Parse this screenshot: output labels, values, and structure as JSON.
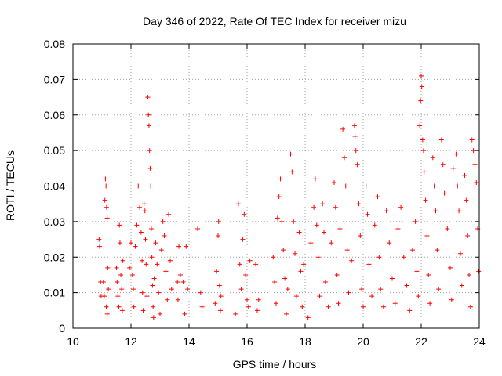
{
  "chart_data": {
    "type": "scatter",
    "title": "Day 346 of 2022, Rate Of TEC Index for receiver mizu",
    "xlabel": "GPS time / hours",
    "ylabel": "ROTI / TECUs",
    "xlim": [
      10,
      24
    ],
    "ylim": [
      0,
      0.08
    ],
    "xticks": [
      10,
      12,
      14,
      16,
      18,
      20,
      22,
      24
    ],
    "yticks": [
      0,
      0.01,
      0.02,
      0.03,
      0.04,
      0.05,
      0.06,
      0.07,
      0.08
    ],
    "xtick_labels": [
      "10",
      "12",
      "14",
      "16",
      "18",
      "20",
      "22",
      "24"
    ],
    "ytick_labels": [
      "0",
      "0.01",
      "0.02",
      "0.03",
      "0.04",
      "0.05",
      "0.06",
      "0.07",
      "0.08"
    ],
    "grid": true,
    "marker": "+",
    "series": [
      {
        "color": "#ff0000",
        "points": [
          [
            10.9,
            0.025
          ],
          [
            10.92,
            0.023
          ],
          [
            10.95,
            0.013
          ],
          [
            10.97,
            0.009
          ],
          [
            11.05,
            0.013
          ],
          [
            11.08,
            0.009
          ],
          [
            11.1,
            0.036
          ],
          [
            11.12,
            0.042
          ],
          [
            11.14,
            0.04
          ],
          [
            11.16,
            0.034
          ],
          [
            11.18,
            0.031
          ],
          [
            11.2,
            0.017
          ],
          [
            11.22,
            0.011
          ],
          [
            11.15,
            0.006
          ],
          [
            11.18,
            0.004
          ],
          [
            11.5,
            0.017
          ],
          [
            11.52,
            0.013
          ],
          [
            11.55,
            0.009
          ],
          [
            11.58,
            0.006
          ],
          [
            11.6,
            0.029
          ],
          [
            11.62,
            0.024
          ],
          [
            11.65,
            0.015
          ],
          [
            11.68,
            0.011
          ],
          [
            11.7,
            0.005
          ],
          [
            11.72,
            0.019
          ],
          [
            11.95,
            0.017
          ],
          [
            12.0,
            0.024
          ],
          [
            12.05,
            0.015
          ],
          [
            12.08,
            0.011
          ],
          [
            12.1,
            0.006
          ],
          [
            12.15,
            0.023
          ],
          [
            12.2,
            0.029
          ],
          [
            12.25,
            0.04
          ],
          [
            12.3,
            0.034
          ],
          [
            12.35,
            0.027
          ],
          [
            12.38,
            0.019
          ],
          [
            12.4,
            0.01
          ],
          [
            12.42,
            0.005
          ],
          [
            12.45,
            0.035
          ],
          [
            12.48,
            0.033
          ],
          [
            12.5,
            0.025
          ],
          [
            12.52,
            0.018
          ],
          [
            12.55,
            0.009
          ],
          [
            12.58,
            0.065
          ],
          [
            12.6,
            0.06
          ],
          [
            12.62,
            0.057
          ],
          [
            12.64,
            0.05
          ],
          [
            12.66,
            0.045
          ],
          [
            12.68,
            0.04
          ],
          [
            12.7,
            0.028
          ],
          [
            12.72,
            0.02
          ],
          [
            12.74,
            0.012
          ],
          [
            12.76,
            0.006
          ],
          [
            12.78,
            0.003
          ],
          [
            12.8,
            0.014
          ],
          [
            12.85,
            0.024
          ],
          [
            12.9,
            0.018
          ],
          [
            12.95,
            0.01
          ],
          [
            13.0,
            0.004
          ],
          [
            13.05,
            0.022
          ],
          [
            13.1,
            0.03
          ],
          [
            13.15,
            0.026
          ],
          [
            13.2,
            0.016
          ],
          [
            13.25,
            0.008
          ],
          [
            13.3,
            0.032
          ],
          [
            13.35,
            0.019
          ],
          [
            13.4,
            0.011
          ],
          [
            13.6,
            0.013
          ],
          [
            13.62,
            0.008
          ],
          [
            13.65,
            0.023
          ],
          [
            13.7,
            0.015
          ],
          [
            13.8,
            0.013
          ],
          [
            13.85,
            0.004
          ],
          [
            13.9,
            0.023
          ],
          [
            13.95,
            0.011
          ],
          [
            14.3,
            0.028
          ],
          [
            14.4,
            0.01
          ],
          [
            14.45,
            0.006
          ],
          [
            14.9,
            0.007
          ],
          [
            14.95,
            0.016
          ],
          [
            15.0,
            0.026
          ],
          [
            15.02,
            0.03
          ],
          [
            15.05,
            0.012
          ],
          [
            15.08,
            0.005
          ],
          [
            15.1,
            0.009
          ],
          [
            15.6,
            0.004
          ],
          [
            15.7,
            0.035
          ],
          [
            15.75,
            0.018
          ],
          [
            15.8,
            0.011
          ],
          [
            15.85,
            0.025
          ],
          [
            15.9,
            0.032
          ],
          [
            15.95,
            0.015
          ],
          [
            16.0,
            0.008
          ],
          [
            16.05,
            0.006
          ],
          [
            16.1,
            0.019
          ],
          [
            16.3,
            0.018
          ],
          [
            16.35,
            0.005
          ],
          [
            16.4,
            0.008
          ],
          [
            16.9,
            0.02
          ],
          [
            16.95,
            0.013
          ],
          [
            17.0,
            0.007
          ],
          [
            17.05,
            0.031
          ],
          [
            17.1,
            0.037
          ],
          [
            17.15,
            0.042
          ],
          [
            17.2,
            0.03
          ],
          [
            17.25,
            0.022
          ],
          [
            17.3,
            0.014
          ],
          [
            17.35,
            0.004
          ],
          [
            17.4,
            0.011
          ],
          [
            17.5,
            0.049
          ],
          [
            17.55,
            0.044
          ],
          [
            17.6,
            0.03
          ],
          [
            17.65,
            0.021
          ],
          [
            17.7,
            0.009
          ],
          [
            17.8,
            0.027
          ],
          [
            17.85,
            0.016
          ],
          [
            17.9,
            0.006
          ],
          [
            17.95,
            0.018
          ],
          [
            18.1,
            0.003
          ],
          [
            18.2,
            0.024
          ],
          [
            18.3,
            0.034
          ],
          [
            18.35,
            0.042
          ],
          [
            18.4,
            0.029
          ],
          [
            18.45,
            0.02
          ],
          [
            18.5,
            0.009
          ],
          [
            18.6,
            0.035
          ],
          [
            18.65,
            0.027
          ],
          [
            18.7,
            0.013
          ],
          [
            18.8,
            0.006
          ],
          [
            18.9,
            0.024
          ],
          [
            19.0,
            0.041
          ],
          [
            19.05,
            0.034
          ],
          [
            19.1,
            0.015
          ],
          [
            19.15,
            0.007
          ],
          [
            19.2,
            0.028
          ],
          [
            19.3,
            0.056
          ],
          [
            19.35,
            0.048
          ],
          [
            19.4,
            0.04
          ],
          [
            19.45,
            0.022
          ],
          [
            19.5,
            0.01
          ],
          [
            19.6,
            0.019
          ],
          [
            19.7,
            0.057
          ],
          [
            19.72,
            0.054
          ],
          [
            19.75,
            0.05
          ],
          [
            19.8,
            0.046
          ],
          [
            19.85,
            0.035
          ],
          [
            19.9,
            0.026
          ],
          [
            19.95,
            0.011
          ],
          [
            20.0,
            0.006
          ],
          [
            20.1,
            0.04
          ],
          [
            20.15,
            0.032
          ],
          [
            20.2,
            0.018
          ],
          [
            20.3,
            0.009
          ],
          [
            20.4,
            0.029
          ],
          [
            20.5,
            0.037
          ],
          [
            20.55,
            0.02
          ],
          [
            20.6,
            0.011
          ],
          [
            20.7,
            0.006
          ],
          [
            20.8,
            0.033
          ],
          [
            20.9,
            0.024
          ],
          [
            21.0,
            0.014
          ],
          [
            21.1,
            0.007
          ],
          [
            21.2,
            0.028
          ],
          [
            21.3,
            0.034
          ],
          [
            21.4,
            0.02
          ],
          [
            21.5,
            0.012
          ],
          [
            21.6,
            0.005
          ],
          [
            21.7,
            0.022
          ],
          [
            21.8,
            0.03
          ],
          [
            21.85,
            0.016
          ],
          [
            21.9,
            0.009
          ],
          [
            21.95,
            0.057
          ],
          [
            21.98,
            0.064
          ],
          [
            22.0,
            0.071
          ],
          [
            22.02,
            0.068
          ],
          [
            22.05,
            0.053
          ],
          [
            22.08,
            0.05
          ],
          [
            22.1,
            0.044
          ],
          [
            22.15,
            0.036
          ],
          [
            22.2,
            0.026
          ],
          [
            22.25,
            0.015
          ],
          [
            22.3,
            0.007
          ],
          [
            22.4,
            0.048
          ],
          [
            22.45,
            0.04
          ],
          [
            22.5,
            0.033
          ],
          [
            22.55,
            0.022
          ],
          [
            22.6,
            0.011
          ],
          [
            22.7,
            0.053
          ],
          [
            22.75,
            0.046
          ],
          [
            22.8,
            0.038
          ],
          [
            22.9,
            0.028
          ],
          [
            23.0,
            0.017
          ],
          [
            23.05,
            0.008
          ],
          [
            23.1,
            0.045
          ],
          [
            23.2,
            0.049
          ],
          [
            23.25,
            0.04
          ],
          [
            23.3,
            0.033
          ],
          [
            23.35,
            0.021
          ],
          [
            23.4,
            0.012
          ],
          [
            23.5,
            0.043
          ],
          [
            23.55,
            0.036
          ],
          [
            23.6,
            0.026
          ],
          [
            23.65,
            0.015
          ],
          [
            23.7,
            0.006
          ],
          [
            23.75,
            0.053
          ],
          [
            23.8,
            0.05
          ],
          [
            23.85,
            0.046
          ],
          [
            23.9,
            0.041
          ],
          [
            23.95,
            0.028
          ],
          [
            23.98,
            0.016
          ]
        ]
      }
    ]
  }
}
